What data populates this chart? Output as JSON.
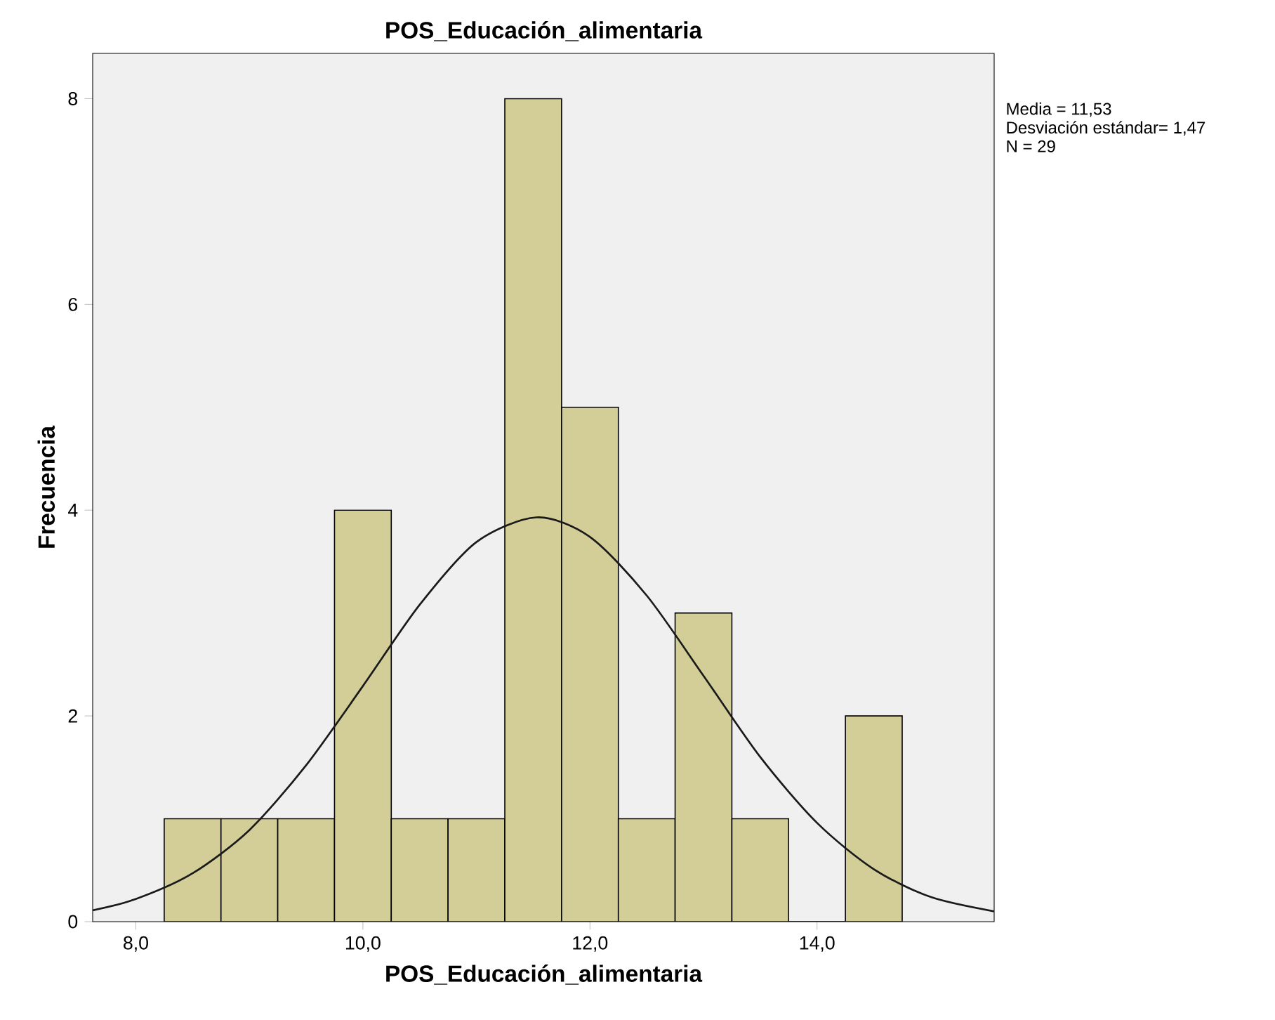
{
  "chart_data": {
    "type": "histogram",
    "title": "POS_Educación_alimentaria",
    "xlabel": "POS_Educación_alimentaria",
    "ylabel": "Frecuencia",
    "bins": [
      8.25,
      8.75,
      9.25,
      9.75,
      10.25,
      10.75,
      11.25,
      11.75,
      12.25,
      12.75,
      13.25,
      13.75,
      14.25,
      14.75
    ],
    "values": [
      1,
      1,
      1,
      4,
      1,
      1,
      8,
      5,
      1,
      3,
      1,
      0,
      2
    ],
    "color": "#d3ce98",
    "series": [
      {
        "type": "line",
        "color": "#1a1a1a",
        "x": [
          7.62,
          8.0,
          8.5,
          9.0,
          9.5,
          10.0,
          10.5,
          11.0,
          11.53,
          12.0,
          12.5,
          13.0,
          13.5,
          14.0,
          14.5,
          15.0,
          15.56
        ],
        "values": [
          0.11,
          0.22,
          0.47,
          0.89,
          1.52,
          2.29,
          3.08,
          3.69,
          3.93,
          3.74,
          3.17,
          2.39,
          1.6,
          0.96,
          0.51,
          0.24,
          0.1
        ]
      }
    ],
    "xlim": [
      7.62,
      15.56
    ],
    "ylim": [
      0,
      8.44
    ],
    "xticks": [
      {
        "value": 8,
        "label": "8,0"
      },
      {
        "value": 10,
        "label": "10,0"
      },
      {
        "value": 12,
        "label": "12,0"
      },
      {
        "value": 14,
        "label": "14,0"
      }
    ],
    "yticks": [
      0,
      2,
      4,
      6,
      8
    ],
    "grid": false,
    "annotations": [
      "Media = 11,53",
      "Desviación estándar= 1,47",
      "N = 29"
    ]
  }
}
